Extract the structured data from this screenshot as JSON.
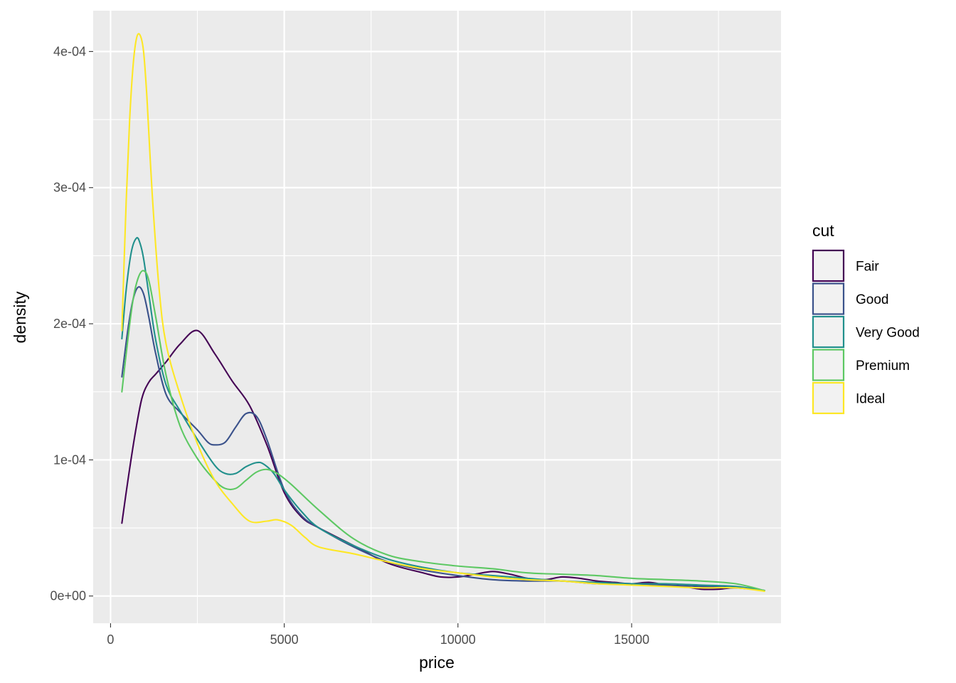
{
  "chart_data": {
    "type": "line",
    "title": "",
    "xlabel": "price",
    "ylabel": "density",
    "xlim": [
      -500,
      19300
    ],
    "ylim": [
      -2e-05,
      0.00043
    ],
    "x_ticks": [
      0,
      5000,
      10000,
      15000
    ],
    "x_tick_labels": [
      "0",
      "5000",
      "10000",
      "15000"
    ],
    "y_ticks": [
      0,
      0.0001,
      0.0002,
      0.0003,
      0.0004
    ],
    "y_tick_labels": [
      "0e+00",
      "1e-04",
      "2e-04",
      "3e-04",
      "4e-04"
    ],
    "grid": true,
    "legend": {
      "title": "cut",
      "placement": "right"
    },
    "series": [
      {
        "name": "Fair",
        "color": "#440154",
        "x": [
          326,
          500,
          700,
          900,
          1100,
          1300,
          1600,
          2000,
          2500,
          3000,
          3500,
          4000,
          4500,
          5000,
          5500,
          6000,
          7000,
          8000,
          9000,
          9500,
          10000,
          10500,
          11000,
          11500,
          12000,
          12500,
          13000,
          13500,
          14000,
          14500,
          15000,
          15500,
          16000,
          16500,
          17000,
          17500,
          18000,
          18823
        ],
        "y": [
          5.35e-05,
          8.5e-05,
          0.000118,
          0.000145,
          0.000157,
          0.000163,
          0.000172,
          0.000185,
          0.000195,
          0.000178,
          0.000158,
          0.00014,
          0.000111,
          7.6e-05,
          5.8e-05,
          5e-05,
          3.7e-05,
          2.4e-05,
          1.7e-05,
          1.4e-05,
          1.4e-05,
          1.6e-05,
          1.8e-05,
          1.6e-05,
          1.3e-05,
          1.2e-05,
          1.4e-05,
          1.3e-05,
          1.1e-05,
          1e-05,
          9e-06,
          1e-05,
          8e-06,
          7e-06,
          5e-06,
          5e-06,
          6e-06,
          4e-06
        ]
      },
      {
        "name": "Good",
        "color": "#3B528B",
        "x": [
          326,
          500,
          650,
          800,
          950,
          1100,
          1300,
          1600,
          2000,
          2500,
          2800,
          3000,
          3300,
          3600,
          3900,
          4200,
          4500,
          5000,
          5500,
          6000,
          7000,
          8000,
          9000,
          10000,
          11000,
          12000,
          13000,
          14000,
          15000,
          16000,
          17000,
          18000,
          18823
        ],
        "y": [
          0.000161,
          0.000196,
          0.000218,
          0.000227,
          0.000222,
          0.000205,
          0.000178,
          0.000148,
          0.000135,
          0.000122,
          0.000113,
          0.000111,
          0.000113,
          0.000124,
          0.000134,
          0.000132,
          0.000115,
          7.8e-05,
          5.9e-05,
          5e-05,
          3.6e-05,
          2.5e-05,
          1.9e-05,
          1.5e-05,
          1.2e-05,
          1.1e-05,
          1.1e-05,
          9e-06,
          9e-06,
          8e-06,
          7e-06,
          6e-06,
          4e-06
        ]
      },
      {
        "name": "Very Good",
        "color": "#21908C",
        "x": [
          326,
          450,
          600,
          750,
          850,
          950,
          1100,
          1300,
          1600,
          2000,
          2500,
          3000,
          3300,
          3600,
          3900,
          4200,
          4400,
          4700,
          5000,
          5500,
          6000,
          7000,
          8000,
          9000,
          10000,
          11000,
          12000,
          13000,
          14000,
          15000,
          16000,
          17000,
          18000,
          18823
        ],
        "y": [
          0.000189,
          0.000225,
          0.000253,
          0.000263,
          0.000259,
          0.000248,
          0.000222,
          0.000188,
          0.000155,
          0.000136,
          0.000115,
          9.6e-05,
          9e-05,
          9e-05,
          9.5e-05,
          9.8e-05,
          9.7e-05,
          9e-05,
          7.8e-05,
          6.2e-05,
          5e-05,
          3.7e-05,
          2.7e-05,
          2.1e-05,
          1.7e-05,
          1.5e-05,
          1.3e-05,
          1.1e-05,
          1e-05,
          9e-06,
          9e-06,
          8e-06,
          7e-06,
          4e-06
        ]
      },
      {
        "name": "Premium",
        "color": "#5DC863",
        "x": [
          326,
          500,
          650,
          800,
          950,
          1100,
          1300,
          1600,
          2000,
          2500,
          3000,
          3300,
          3600,
          3900,
          4200,
          4500,
          4800,
          5200,
          6000,
          7000,
          8000,
          9000,
          10000,
          11000,
          12000,
          13000,
          14000,
          15000,
          16000,
          17000,
          18000,
          18823
        ],
        "y": [
          0.00015,
          0.000189,
          0.000218,
          0.000234,
          0.000239,
          0.000232,
          0.000205,
          0.000162,
          0.000125,
          0.000101,
          8.5e-05,
          7.9e-05,
          7.9e-05,
          8.5e-05,
          9.1e-05,
          9.3e-05,
          9e-05,
          8.2e-05,
          6.3e-05,
          4.2e-05,
          3e-05,
          2.5e-05,
          2.2e-05,
          2e-05,
          1.7e-05,
          1.6e-05,
          1.5e-05,
          1.3e-05,
          1.2e-05,
          1.1e-05,
          9e-06,
          4e-06
        ]
      },
      {
        "name": "Ideal",
        "color": "#FDE725",
        "x": [
          326,
          450,
          550,
          650,
          750,
          850,
          950,
          1050,
          1200,
          1400,
          1600,
          2000,
          2500,
          3000,
          3500,
          4000,
          4500,
          4800,
          5200,
          5600,
          6000,
          7000,
          8000,
          9000,
          10000,
          11000,
          12000,
          13000,
          14000,
          15000,
          16000,
          17000,
          18000,
          18823
        ],
        "y": [
          0.000195,
          0.00029,
          0.00035,
          0.00039,
          0.00041,
          0.000412,
          0.0004,
          0.000365,
          0.000295,
          0.000225,
          0.000185,
          0.000148,
          0.000112,
          8.5e-05,
          6.8e-05,
          5.5e-05,
          5.5e-05,
          5.6e-05,
          5.2e-05,
          4.3e-05,
          3.6e-05,
          3.1e-05,
          2.5e-05,
          2e-05,
          1.7e-05,
          1.4e-05,
          1.2e-05,
          1.1e-05,
          9e-06,
          8e-06,
          7e-06,
          6e-06,
          6e-06,
          3.5e-06
        ]
      }
    ]
  }
}
